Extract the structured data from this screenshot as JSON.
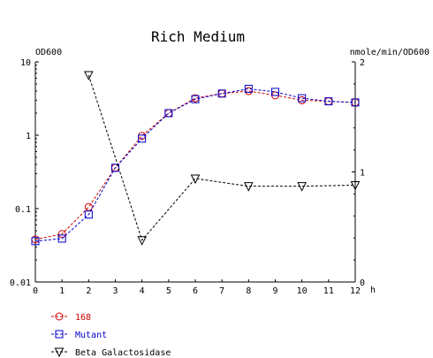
{
  "chart_data": {
    "type": "line",
    "title": "Rich Medium",
    "xlabel": "h",
    "ylabel_left": "OD600",
    "ylabel_right": "nmole/min/OD600",
    "x_ticks": [
      "0",
      "1",
      "2",
      "3",
      "4",
      "5",
      "6",
      "7",
      "8",
      "9",
      "10",
      "11",
      "12"
    ],
    "y_left_ticks": [
      "10",
      "1",
      "0.1",
      "0.01"
    ],
    "y_right_ticks": [
      "2",
      "1",
      "0"
    ],
    "xlim": [
      0,
      12
    ],
    "ylim_left": [
      0.01,
      10
    ],
    "y_left_scale": "log",
    "ylim_right": [
      0,
      2
    ],
    "grid": false,
    "legend_position": "bottom-left",
    "series": [
      {
        "name": "168",
        "axis": "left",
        "color": "#cc0000",
        "marker": "circle",
        "line": "dashed",
        "x": [
          0,
          1,
          2,
          3,
          4,
          5,
          6,
          7,
          8,
          9,
          10,
          11,
          12
        ],
        "y": [
          0.038,
          0.045,
          0.105,
          0.36,
          0.98,
          2.0,
          3.2,
          3.7,
          4.0,
          3.5,
          3.0,
          2.9,
          2.8
        ]
      },
      {
        "name": "Mutant",
        "axis": "left",
        "color": "#0000cc",
        "marker": "square",
        "line": "dashed",
        "x": [
          0,
          1,
          2,
          3,
          4,
          5,
          6,
          7,
          8,
          9,
          10,
          11,
          12
        ],
        "y": [
          0.036,
          0.039,
          0.083,
          0.36,
          0.9,
          2.0,
          3.1,
          3.7,
          4.3,
          3.9,
          3.2,
          2.9,
          2.8
        ]
      },
      {
        "name": "Beta Galactosidase",
        "axis": "right",
        "color": "#000000",
        "marker": "triangle-down",
        "line": "dashed",
        "x": [
          2,
          4,
          6,
          8,
          10,
          12
        ],
        "y": [
          1.88,
          0.38,
          0.94,
          0.87,
          0.87,
          0.88
        ]
      }
    ]
  }
}
